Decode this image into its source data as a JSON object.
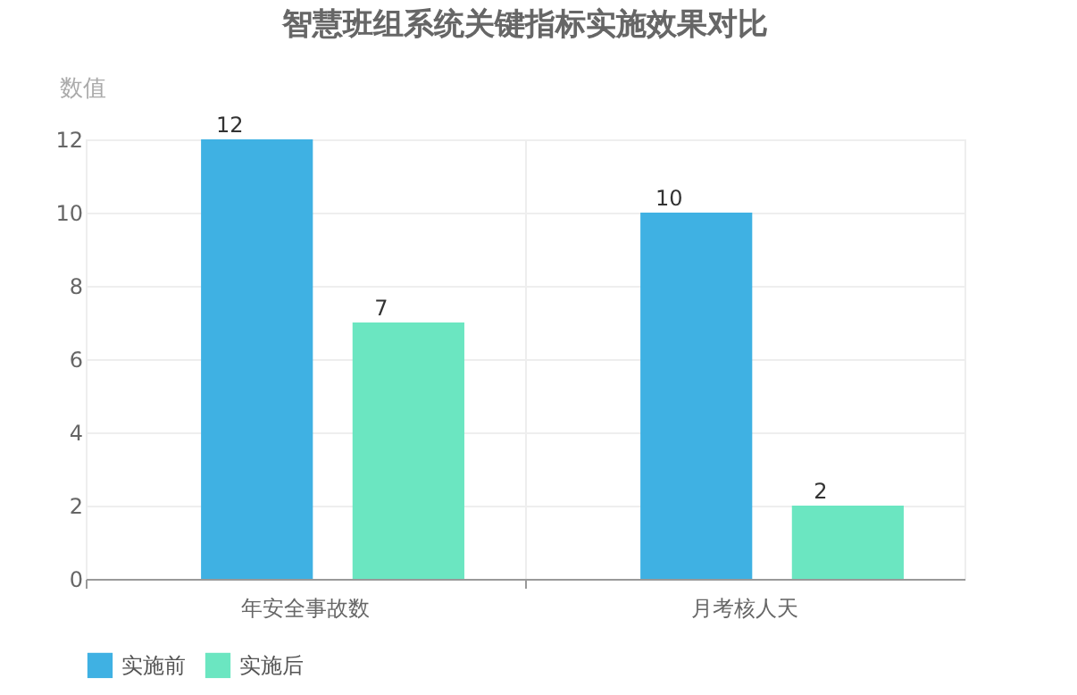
{
  "chart_data": {
    "type": "bar",
    "title": "智慧班组系统关键指标实施效果对比",
    "ylabel": "数值",
    "categories": [
      "年安全事故数",
      "月考核人天"
    ],
    "series": [
      {
        "name": "实施前",
        "color": "#3fb1e3",
        "values": [
          12,
          10
        ]
      },
      {
        "name": "实施后",
        "color": "#6be6c1",
        "values": [
          7,
          2
        ]
      }
    ],
    "ylim": [
      0,
      12
    ],
    "yticks": [
      0,
      2,
      4,
      6,
      8,
      10,
      12
    ],
    "grid": true,
    "legend": "bottom",
    "data_labels": true
  }
}
